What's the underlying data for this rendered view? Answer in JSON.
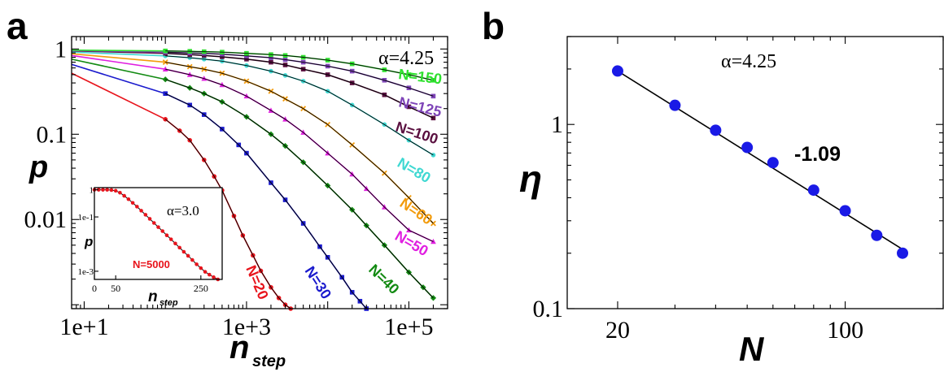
{
  "panels": {
    "a": "a",
    "b": "b"
  },
  "chart_data": [
    {
      "type": "scatter",
      "panel": "a",
      "xlabel": "n",
      "xlabel_sub": "step",
      "ylabel": "p",
      "xscale": "log",
      "yscale": "log",
      "xlim": [
        7,
        300000
      ],
      "ylim": [
        0.0009,
        1.4
      ],
      "xticks": [
        10,
        1000,
        100000
      ],
      "xtick_labels": [
        "1e+1",
        "1e+3",
        "1e+5"
      ],
      "yticks": [
        0.01,
        0.1,
        1
      ],
      "ytick_labels": [
        "0.01",
        "0.1",
        "1"
      ],
      "annotation": "α=4.25",
      "series": [
        {
          "name": "N=20",
          "color": "#e8141c",
          "marker": "circle",
          "x": [
            7,
            100,
            150,
            200,
            300,
            400,
            500,
            700,
            900,
            1200,
            1500,
            2000,
            2500,
            3000,
            3500
          ],
          "y": [
            0.52,
            0.15,
            0.11,
            0.085,
            0.05,
            0.032,
            0.022,
            0.011,
            0.0065,
            0.0038,
            0.0025,
            0.0016,
            0.0012,
            0.001,
            0.0009
          ]
        },
        {
          "name": "N=30",
          "color": "#1a1acd",
          "marker": "square",
          "x": [
            7,
            100,
            200,
            300,
            500,
            800,
            1000,
            2000,
            3000,
            5000,
            8000,
            10000,
            15000,
            20000,
            25000,
            30000
          ],
          "y": [
            0.66,
            0.3,
            0.22,
            0.17,
            0.115,
            0.075,
            0.06,
            0.027,
            0.017,
            0.009,
            0.0048,
            0.0036,
            0.0021,
            0.0014,
            0.0011,
            0.0009
          ]
        },
        {
          "name": "N=40",
          "color": "#128a12",
          "marker": "diamond",
          "x": [
            7,
            100,
            200,
            300,
            500,
            1000,
            2000,
            3000,
            5000,
            10000,
            20000,
            30000,
            50000,
            100000,
            150000,
            200000
          ],
          "y": [
            0.76,
            0.44,
            0.35,
            0.3,
            0.24,
            0.16,
            0.1,
            0.073,
            0.047,
            0.025,
            0.013,
            0.0085,
            0.005,
            0.0024,
            0.0016,
            0.0012
          ]
        },
        {
          "name": "N=50",
          "color": "#e01ee0",
          "marker": "triangle",
          "x": [
            7,
            100,
            200,
            300,
            500,
            1000,
            2000,
            3000,
            5000,
            10000,
            20000,
            30000,
            50000,
            100000,
            200000
          ],
          "y": [
            0.84,
            0.58,
            0.5,
            0.45,
            0.38,
            0.28,
            0.19,
            0.15,
            0.105,
            0.06,
            0.034,
            0.023,
            0.014,
            0.0075,
            0.0055
          ]
        },
        {
          "name": "N=60",
          "color": "#f29b0c",
          "marker": "x",
          "x": [
            7,
            100,
            200,
            300,
            500,
            1000,
            2000,
            3000,
            5000,
            10000,
            20000,
            50000,
            100000,
            200000
          ],
          "y": [
            0.88,
            0.7,
            0.62,
            0.58,
            0.52,
            0.42,
            0.32,
            0.26,
            0.2,
            0.13,
            0.075,
            0.035,
            0.018,
            0.009
          ]
        },
        {
          "name": "N=80",
          "color": "#3fd8d2",
          "marker": "circle",
          "x": [
            7,
            100,
            200,
            300,
            500,
            1000,
            2000,
            3000,
            5000,
            10000,
            20000,
            50000,
            100000,
            200000
          ],
          "y": [
            0.92,
            0.83,
            0.79,
            0.76,
            0.72,
            0.64,
            0.55,
            0.49,
            0.42,
            0.32,
            0.22,
            0.13,
            0.085,
            0.057
          ]
        },
        {
          "name": "N=100",
          "color": "#5a1040",
          "marker": "square",
          "x": [
            7,
            100,
            200,
            300,
            500,
            1000,
            2000,
            3000,
            5000,
            10000,
            20000,
            50000,
            100000,
            200000
          ],
          "y": [
            0.95,
            0.89,
            0.86,
            0.84,
            0.81,
            0.76,
            0.7,
            0.65,
            0.58,
            0.5,
            0.4,
            0.29,
            0.21,
            0.155
          ]
        },
        {
          "name": "N=125",
          "color": "#7f45b8",
          "marker": "square",
          "x": [
            7,
            100,
            200,
            300,
            500,
            1000,
            2000,
            3000,
            5000,
            10000,
            20000,
            50000,
            100000,
            200000
          ],
          "y": [
            0.96,
            0.92,
            0.9,
            0.89,
            0.87,
            0.83,
            0.79,
            0.75,
            0.7,
            0.63,
            0.55,
            0.43,
            0.35,
            0.28
          ]
        },
        {
          "name": "N=150",
          "color": "#2ee02e",
          "marker": "square",
          "x": [
            7,
            100,
            200,
            300,
            500,
            1000,
            2000,
            3000,
            5000,
            10000,
            20000,
            50000,
            100000,
            200000
          ],
          "y": [
            0.97,
            0.95,
            0.94,
            0.93,
            0.92,
            0.89,
            0.86,
            0.84,
            0.8,
            0.74,
            0.67,
            0.57,
            0.5,
            0.43
          ]
        }
      ],
      "inset": {
        "type": "scatter",
        "annotation": "α=3.0",
        "xlabel": "n",
        "xlabel_sub": "step",
        "ylabel": "p",
        "yscale": "log",
        "xlim": [
          0,
          300
        ],
        "ylim": [
          0.0005,
          1.2
        ],
        "xticks": [
          0,
          50,
          250
        ],
        "xtick_labels": [
          "0",
          "50",
          "250"
        ],
        "yticks": [
          1,
          0.1,
          0.001
        ],
        "ytick_labels": [
          "1",
          "1e-1",
          "1e-3"
        ],
        "series": [
          {
            "name": "N=5000",
            "color": "#e8141c",
            "x": [
              0,
              10,
              20,
              30,
              40,
              50,
              60,
              70,
              80,
              90,
              100,
              110,
              120,
              130,
              140,
              150,
              160,
              170,
              180,
              190,
              200,
              210,
              220,
              230,
              240,
              250,
              260,
              270,
              280,
              290
            ],
            "y": [
              1,
              1,
              1,
              1,
              0.98,
              0.92,
              0.78,
              0.6,
              0.45,
              0.33,
              0.24,
              0.17,
              0.12,
              0.085,
              0.06,
              0.042,
              0.03,
              0.021,
              0.015,
              0.0105,
              0.0074,
              0.0052,
              0.0037,
              0.0026,
              0.0018,
              0.0013,
              0.00095,
              0.00075,
              0.0006,
              0.0005
            ]
          }
        ]
      }
    },
    {
      "type": "scatter",
      "panel": "b",
      "xlabel": "N",
      "ylabel": "η",
      "xscale": "log",
      "yscale": "log",
      "xlim": [
        14,
        200
      ],
      "ylim": [
        0.1,
        3
      ],
      "xticks": [
        20,
        100
      ],
      "xtick_labels": [
        "20",
        "100"
      ],
      "yticks": [
        0.1,
        1
      ],
      "ytick_labels": [
        "0.1",
        "1"
      ],
      "annotation": "α=4.25",
      "slope_label": "-1.09",
      "color": "#1a1ae6",
      "x": [
        20,
        30,
        40,
        50,
        60,
        80,
        100,
        125,
        150
      ],
      "y": [
        1.95,
        1.27,
        0.93,
        0.75,
        0.62,
        0.44,
        0.34,
        0.25,
        0.2
      ],
      "fit": {
        "x": [
          20,
          150
        ],
        "y": [
          1.95,
          0.21
        ]
      }
    }
  ]
}
